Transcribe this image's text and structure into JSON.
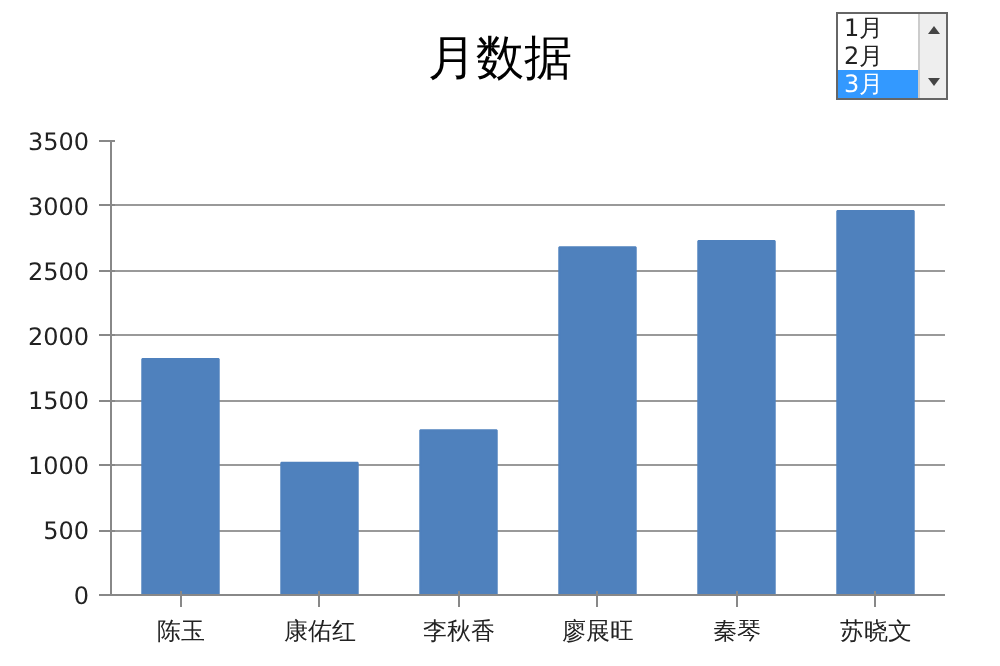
{
  "chart_data": {
    "type": "bar",
    "title": "月数据",
    "categories": [
      "陈玉",
      "康佑红",
      "李秋香",
      "廖展旺",
      "秦琴",
      "苏晓文"
    ],
    "values": [
      1820,
      1020,
      1270,
      2680,
      2730,
      2960
    ],
    "color": "#4f81bd",
    "ylim": [
      0,
      3500
    ],
    "yticks": [
      0,
      500,
      1000,
      1500,
      2000,
      2500,
      3000,
      3500
    ],
    "grid": "y",
    "annotations": [
      "1月",
      "2月",
      "3月"
    ]
  }
}
